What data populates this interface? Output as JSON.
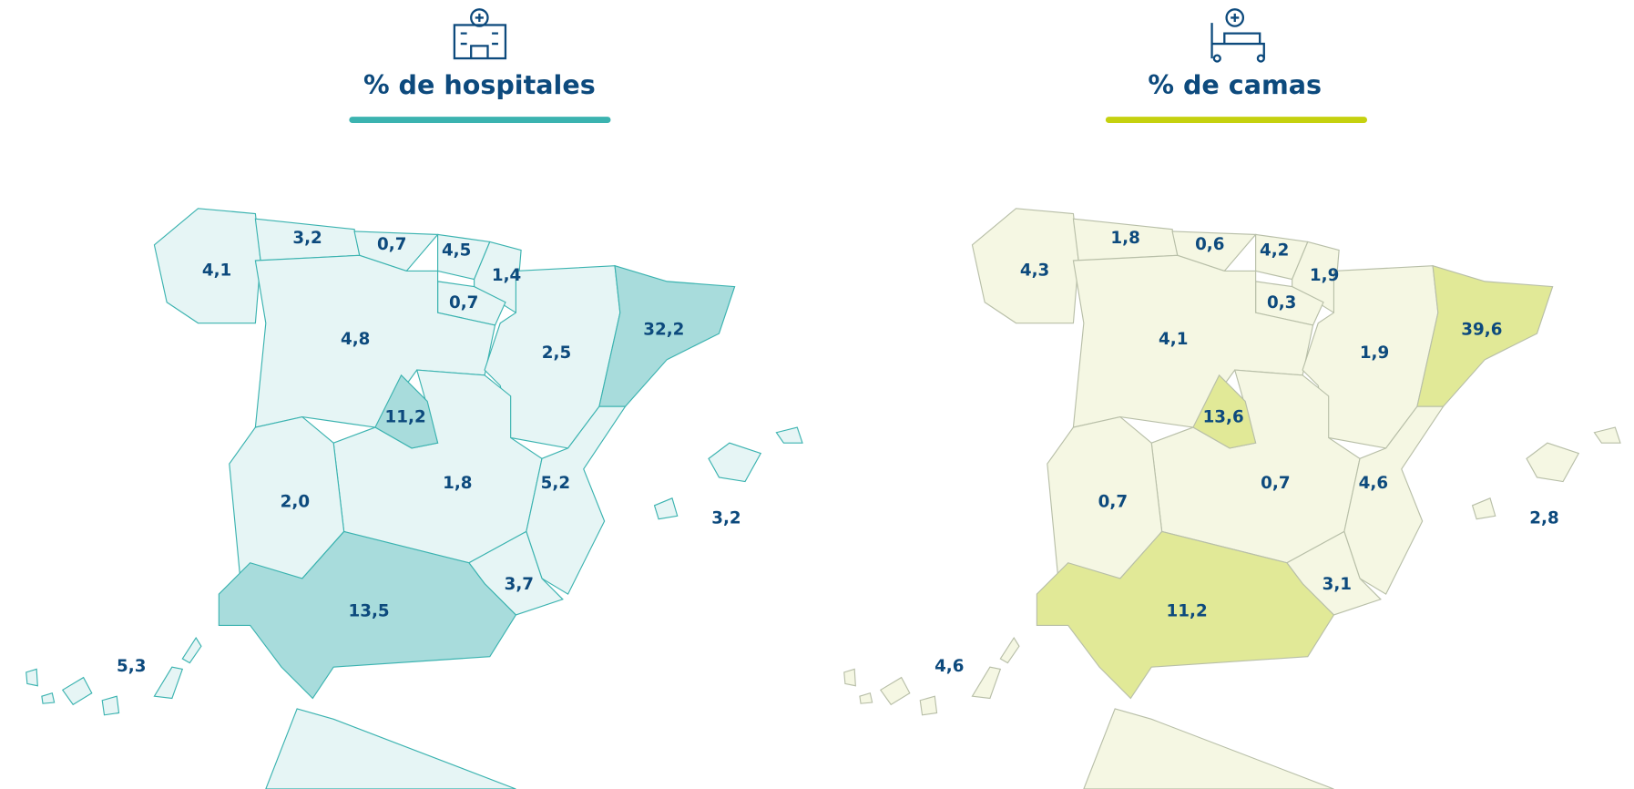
{
  "maps": [
    {
      "title": "% de hospitales",
      "labels": [
        "4,1",
        "3,2",
        "0,7",
        "4,5",
        "1,4",
        "0,7",
        "4,8",
        "2,5",
        "32,2",
        "11,2",
        "1,8",
        "2,0",
        "5,2",
        "3,2",
        "3,7",
        "13,5",
        "5,3"
      ]
    },
    {
      "title": "% de camas",
      "labels": [
        "4,3",
        "1,8",
        "0,6",
        "4,2",
        "1,9",
        "0,3",
        "4,1",
        "1,9",
        "39,6",
        "13,6",
        "0,7",
        "0,7",
        "4,6",
        "2,8",
        "3,1",
        "11,2",
        "4,6"
      ]
    }
  ]
}
